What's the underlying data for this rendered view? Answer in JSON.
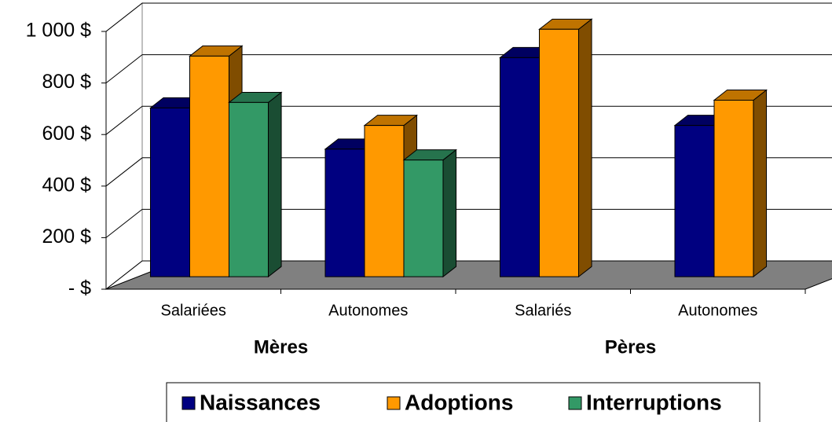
{
  "chart_data": {
    "type": "bar3d",
    "categories": [
      "Salariées",
      "Autonomes",
      "Salariés",
      "Autonomes"
    ],
    "group_labels": [
      "Mères",
      "Pères"
    ],
    "series": [
      {
        "name": "Naissances",
        "color": "#000080",
        "values": [
          655,
          495,
          850,
          587
        ]
      },
      {
        "name": "Adoptions",
        "color": "#FF9900",
        "values": [
          856,
          587,
          960,
          685
        ]
      },
      {
        "name": "Interruptions",
        "color": "#339966",
        "values": [
          676,
          453,
          null,
          null
        ]
      }
    ],
    "ylim": [
      0,
      1000
    ],
    "yticks": [
      {
        "value": 0,
        "label": "-   $"
      },
      {
        "value": 200,
        "label": "200 $"
      },
      {
        "value": 400,
        "label": "400 $"
      },
      {
        "value": 600,
        "label": "600 $"
      },
      {
        "value": 800,
        "label": "800 $"
      },
      {
        "value": 1000,
        "label": "1 000 $"
      }
    ],
    "grid": true,
    "legend": "bottom"
  }
}
